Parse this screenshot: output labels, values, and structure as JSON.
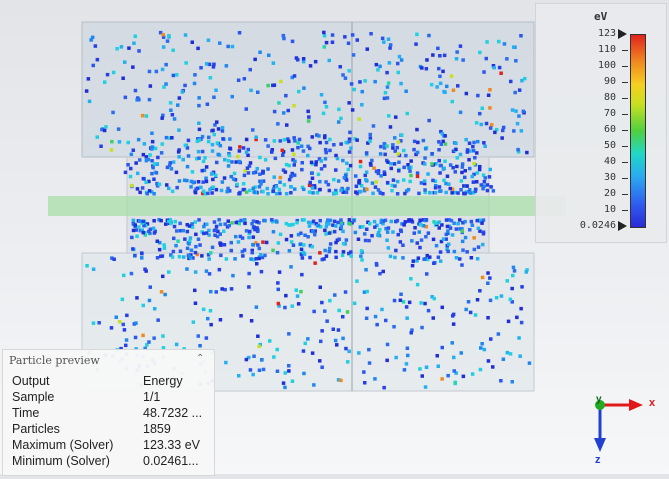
{
  "legend": {
    "unit": "eV",
    "ticks": [
      "123",
      "110",
      "100",
      "90",
      "80",
      "70",
      "60",
      "50",
      "40",
      "30",
      "20",
      "10",
      "0.0246"
    ]
  },
  "preview": {
    "title": "Particle preview",
    "rows": [
      {
        "key": "Output",
        "value": "Energy"
      },
      {
        "key": "Sample",
        "value": "1/1"
      },
      {
        "key": "Time",
        "value": "48.7232 ..."
      },
      {
        "key": "Particles",
        "value": "1859"
      },
      {
        "key": "Maximum (Solver)",
        "value": "123.33 eV"
      },
      {
        "key": "Minimum (Solver)",
        "value": "0.02461..."
      }
    ]
  },
  "triad": {
    "x_label": "x",
    "y_label": "y",
    "z_label": "z"
  },
  "colors": {
    "x_axis": "#e01818",
    "y_axis": "#22aa22",
    "z_axis": "#2040d0"
  }
}
